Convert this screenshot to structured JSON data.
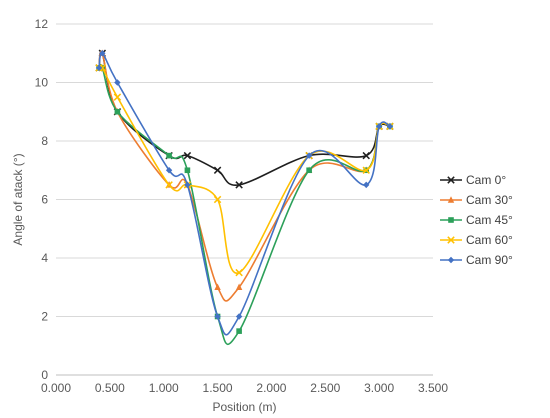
{
  "chart_data": {
    "type": "line",
    "smooth": true,
    "title": "",
    "xlabel": "Position (m)",
    "ylabel": "Angle of atack (°)",
    "xlim": [
      0,
      3.5
    ],
    "ylim": [
      0,
      12
    ],
    "x_ticks": [
      0,
      0.5,
      1.0,
      1.5,
      2.0,
      2.5,
      3.0,
      3.5
    ],
    "x_tick_labels": [
      "0.000",
      "0.500",
      "1.000",
      "1.500",
      "2.000",
      "2.500",
      "3.000",
      "3.500"
    ],
    "y_ticks": [
      0,
      2,
      4,
      6,
      8,
      10,
      12
    ],
    "y_tick_labels": [
      "0",
      "2",
      "4",
      "6",
      "8",
      "10",
      "12"
    ],
    "grid": "horizontal",
    "legend_position": "right",
    "series": [
      {
        "name": "Cam 0°",
        "color": "#1f1f1f",
        "marker": "x",
        "points": [
          [
            0.4,
            10.5
          ],
          [
            0.43,
            11.0
          ],
          [
            0.57,
            9.0
          ],
          [
            1.05,
            7.5
          ],
          [
            1.22,
            7.5
          ],
          [
            1.5,
            7.0
          ],
          [
            1.7,
            6.5
          ],
          [
            2.35,
            7.5
          ],
          [
            2.88,
            7.5
          ],
          [
            3.0,
            8.5
          ],
          [
            3.1,
            8.5
          ]
        ]
      },
      {
        "name": "Cam 30°",
        "color": "#ed7d31",
        "marker": "triangle",
        "points": [
          [
            0.4,
            10.5
          ],
          [
            0.43,
            11.0
          ],
          [
            0.57,
            9.0
          ],
          [
            1.05,
            6.5
          ],
          [
            1.22,
            6.5
          ],
          [
            1.5,
            3.0
          ],
          [
            1.7,
            3.0
          ],
          [
            2.35,
            7.0
          ],
          [
            2.88,
            7.0
          ],
          [
            3.0,
            8.5
          ],
          [
            3.1,
            8.5
          ]
        ]
      },
      {
        "name": "Cam 45°",
        "color": "#2ca05a",
        "marker": "square",
        "points": [
          [
            0.4,
            10.5
          ],
          [
            0.43,
            10.5
          ],
          [
            0.57,
            9.0
          ],
          [
            1.05,
            7.5
          ],
          [
            1.22,
            7.0
          ],
          [
            1.5,
            2.0
          ],
          [
            1.7,
            1.5
          ],
          [
            2.35,
            7.0
          ],
          [
            2.88,
            7.0
          ],
          [
            3.0,
            8.5
          ],
          [
            3.1,
            8.5
          ]
        ]
      },
      {
        "name": "Cam 60°",
        "color": "#ffc000",
        "marker": "x",
        "points": [
          [
            0.4,
            10.5
          ],
          [
            0.43,
            10.5
          ],
          [
            0.57,
            9.5
          ],
          [
            1.05,
            6.5
          ],
          [
            1.22,
            6.5
          ],
          [
            1.5,
            6.0
          ],
          [
            1.7,
            3.5
          ],
          [
            2.35,
            7.5
          ],
          [
            2.88,
            7.0
          ],
          [
            3.0,
            8.5
          ],
          [
            3.1,
            8.5
          ]
        ]
      },
      {
        "name": "Cam 90°",
        "color": "#4472c4",
        "marker": "diamond",
        "points": [
          [
            0.4,
            10.5
          ],
          [
            0.43,
            11.0
          ],
          [
            0.57,
            10.0
          ],
          [
            1.05,
            7.0
          ],
          [
            1.22,
            6.5
          ],
          [
            1.5,
            2.0
          ],
          [
            1.7,
            2.0
          ],
          [
            2.35,
            7.5
          ],
          [
            2.88,
            6.5
          ],
          [
            3.0,
            8.5
          ],
          [
            3.1,
            8.5
          ]
        ]
      }
    ]
  }
}
